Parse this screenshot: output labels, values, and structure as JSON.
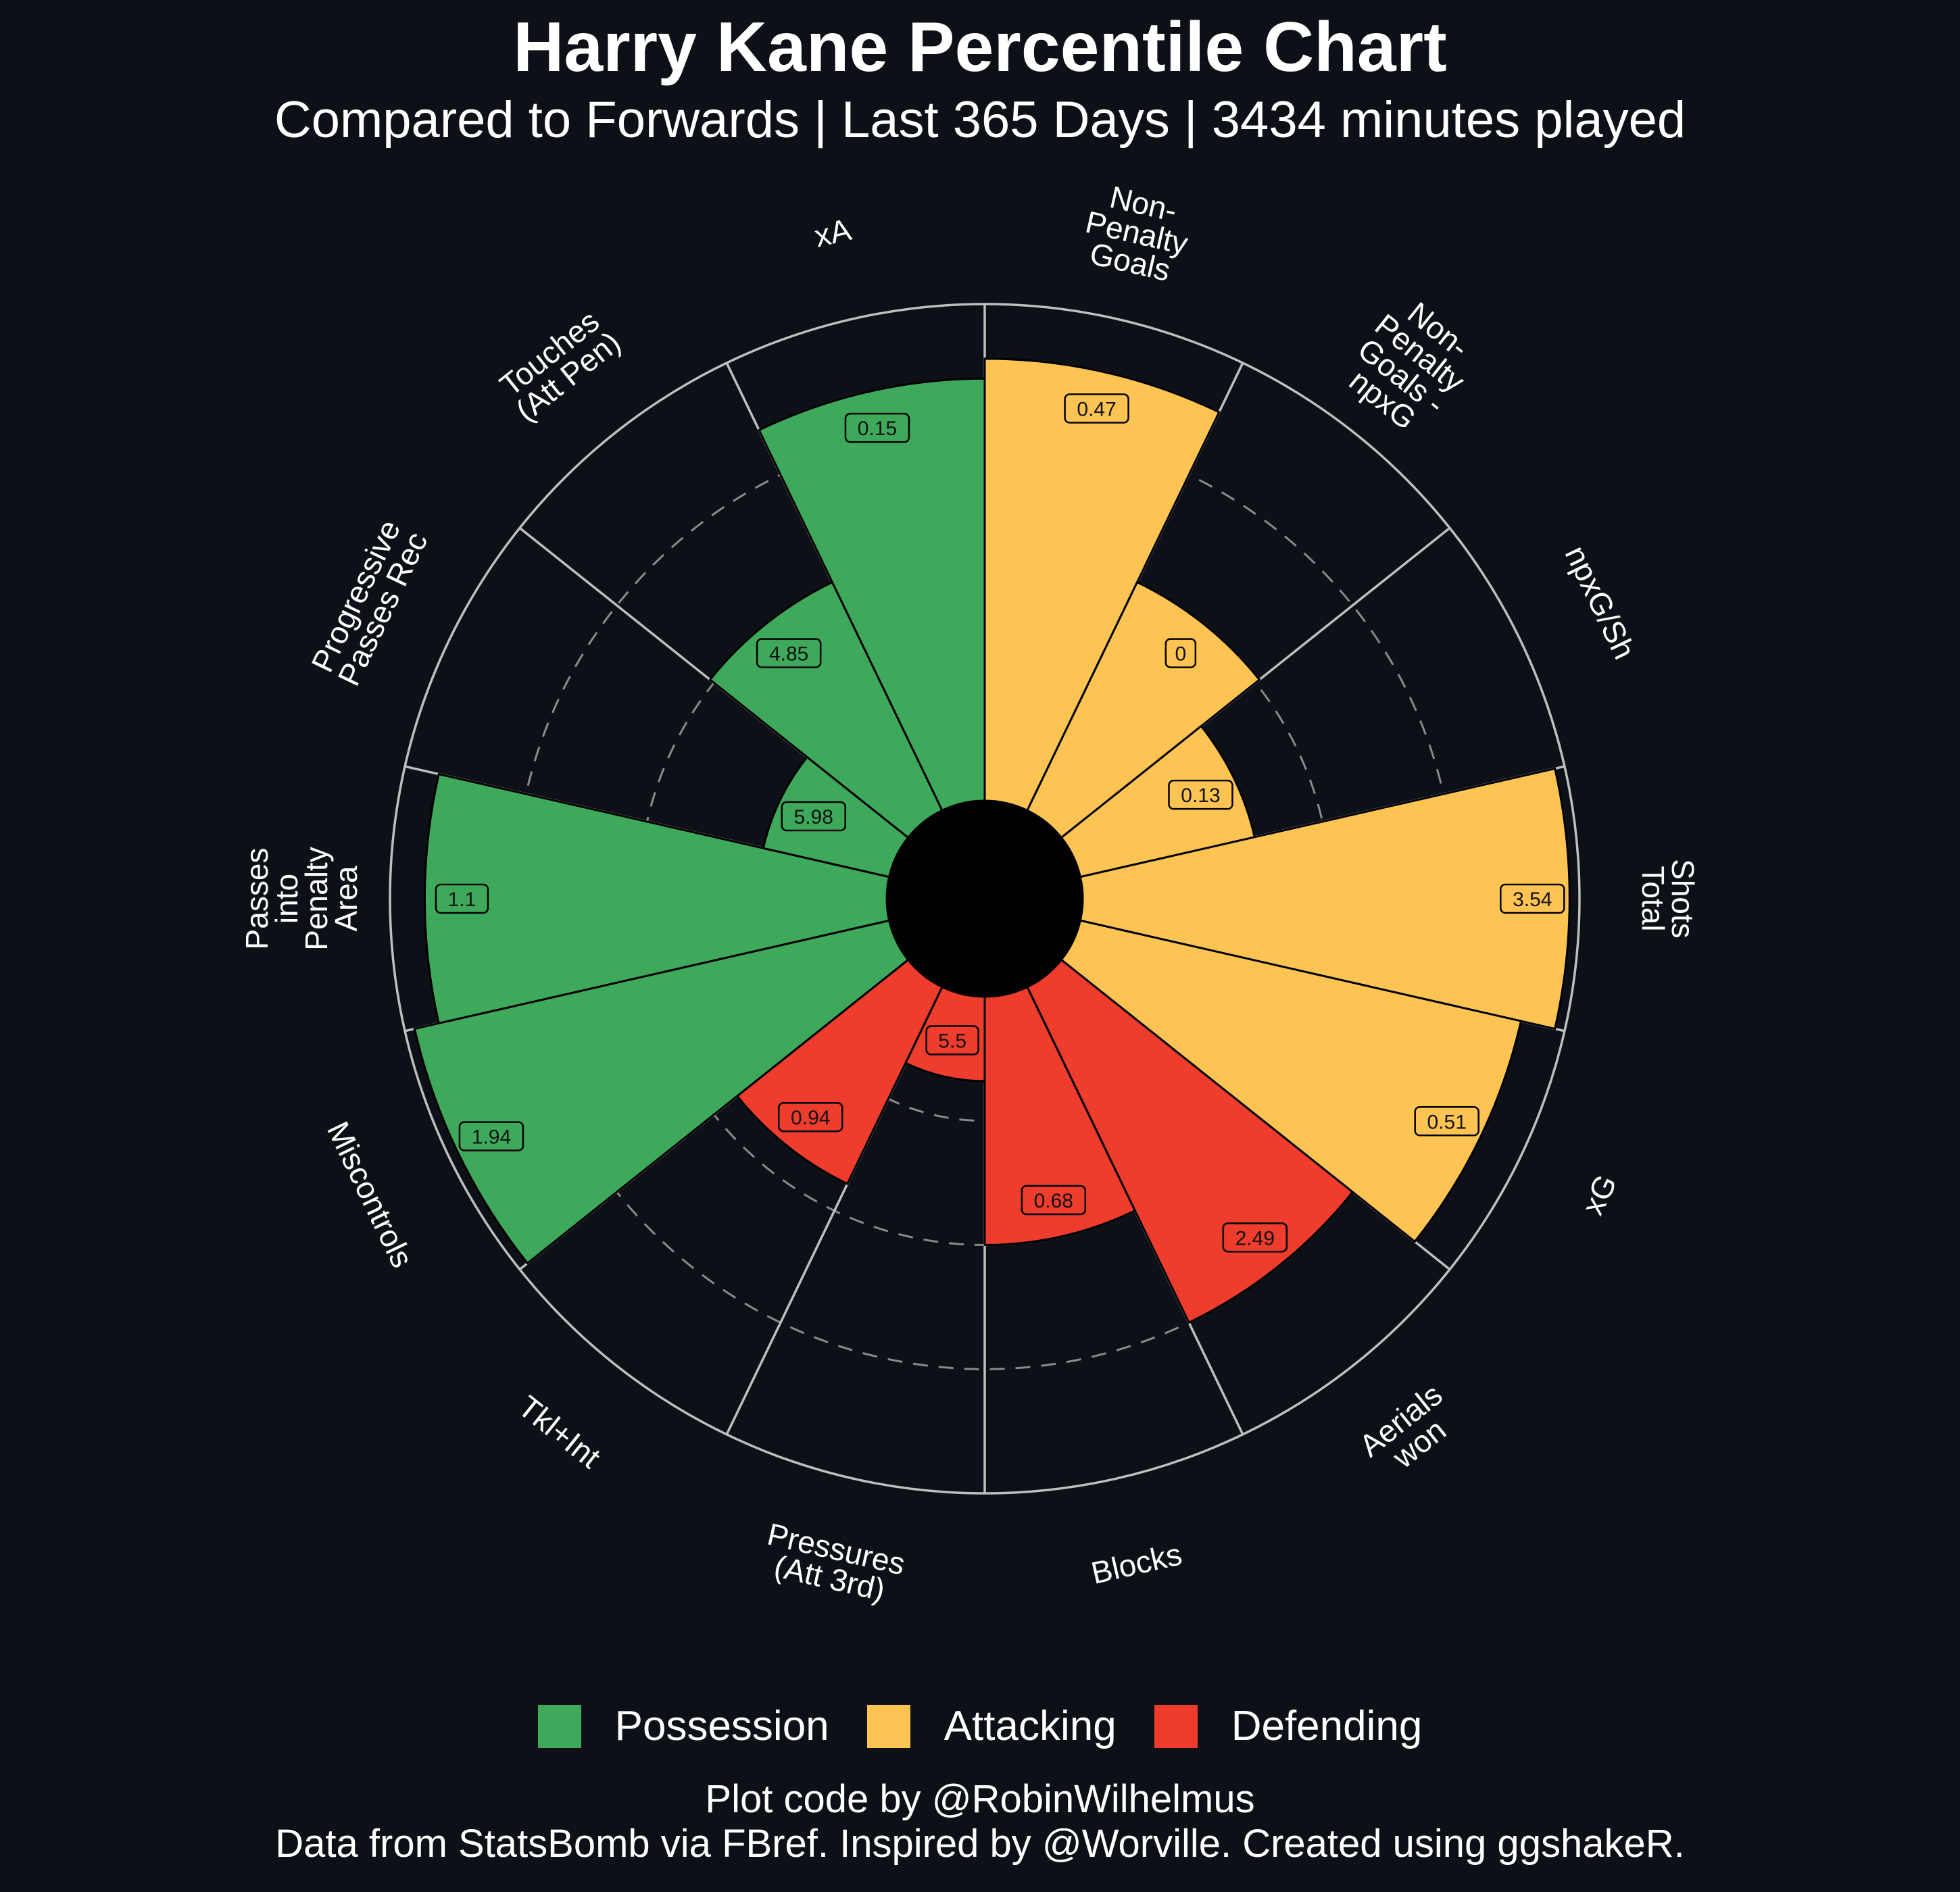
{
  "title": "Harry Kane Percentile Chart",
  "subtitle": "Compared to Forwards | Last 365 Days | 3434 minutes played",
  "legend": [
    {
      "label": "Possession",
      "color": "#3ea95b"
    },
    {
      "label": "Attacking",
      "color": "#fdc454"
    },
    {
      "label": "Defending",
      "color": "#ee3c2d"
    }
  ],
  "caption": {
    "line1": "Plot code by @RobinWilhelmus",
    "line2": "Data from StatsBomb via FBref. Inspired by @Worville. Created using ggshakeR."
  },
  "chart_data": {
    "type": "bar",
    "coordinate_system": "polar",
    "ylim": [
      0,
      100
    ],
    "gridlines": [
      25,
      50,
      75,
      100
    ],
    "grid": true,
    "legend_position": "bottom",
    "categories": [
      {
        "label_lines": [
          "Non-",
          "Penalty",
          "Goals"
        ],
        "group": "Attacking",
        "percentile": 89,
        "value_label": "0.47"
      },
      {
        "label_lines": [
          "Non-",
          "Penalty",
          "Goals -",
          "npxG"
        ],
        "group": "Attacking",
        "percentile": 51,
        "value_label": "0"
      },
      {
        "label_lines": [
          "npxG/Sh"
        ],
        "group": "Attacking",
        "percentile": 36,
        "value_label": "0.13"
      },
      {
        "label_lines": [
          "Shots",
          "Total"
        ],
        "group": "Attacking",
        "percentile": 98,
        "value_label": "3.54"
      },
      {
        "label_lines": [
          "xG"
        ],
        "group": "Attacking",
        "percentile": 91,
        "value_label": "0.51"
      },
      {
        "label_lines": [
          "Aerials",
          "won"
        ],
        "group": "Defending",
        "percentile": 75,
        "value_label": "2.49"
      },
      {
        "label_lines": [
          "Blocks"
        ],
        "group": "Defending",
        "percentile": 50,
        "value_label": "0.68"
      },
      {
        "label_lines": [
          "Pressures",
          "(Att 3rd)"
        ],
        "group": "Defending",
        "percentile": 17,
        "value_label": "5.5"
      },
      {
        "label_lines": [
          "Tkl+Int"
        ],
        "group": "Defending",
        "percentile": 44,
        "value_label": "0.94"
      },
      {
        "label_lines": [
          "Miscontrols"
        ],
        "group": "Possession",
        "percentile": 98,
        "value_label": "1.94"
      },
      {
        "label_lines": [
          "Passes",
          "into",
          "Penalty",
          "Area"
        ],
        "group": "Possession",
        "percentile": 93,
        "value_label": "1.1"
      },
      {
        "label_lines": [
          "Progressive",
          "Passes Rec"
        ],
        "group": "Possession",
        "percentile": 26,
        "value_label": "5.98"
      },
      {
        "label_lines": [
          "Touches",
          "(Att Pen)"
        ],
        "group": "Possession",
        "percentile": 51,
        "value_label": "4.85"
      },
      {
        "label_lines": [
          "xA"
        ],
        "group": "Possession",
        "percentile": 85,
        "value_label": "0.15"
      }
    ]
  }
}
